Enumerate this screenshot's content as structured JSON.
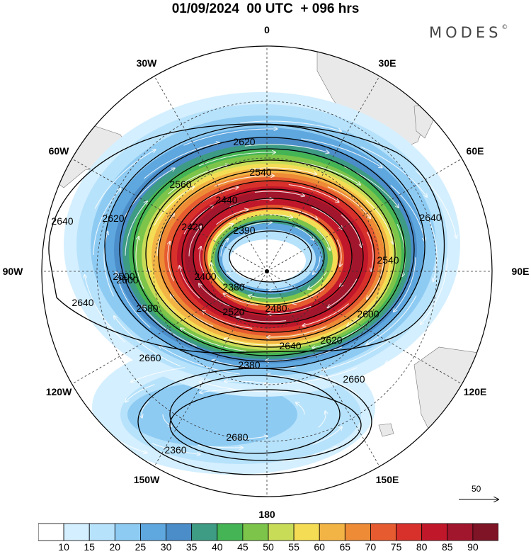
{
  "header": {
    "title": "01/09/2024  00 UTC  + 096 hrs",
    "brand": "MODES",
    "brand_mark": "©"
  },
  "map": {
    "projection": "polar stereographic (south pole)",
    "longitude_labels": [
      {
        "id": "0",
        "text": "0"
      },
      {
        "id": "30e",
        "text": "30E"
      },
      {
        "id": "60e",
        "text": "60E"
      },
      {
        "id": "90e",
        "text": "90E"
      },
      {
        "id": "120e",
        "text": "120E"
      },
      {
        "id": "150e",
        "text": "150E"
      },
      {
        "id": "180",
        "text": "180"
      },
      {
        "id": "150w",
        "text": "150W"
      },
      {
        "id": "120w",
        "text": "120W"
      },
      {
        "id": "90w",
        "text": "90W"
      },
      {
        "id": "60w",
        "text": "60W"
      },
      {
        "id": "30w",
        "text": "30W"
      }
    ],
    "contour_labels": [
      "2620",
      "2640",
      "2640",
      "2640",
      "2620",
      "2600",
      "2580",
      "2560",
      "2540",
      "2520",
      "2500",
      "2480",
      "2440",
      "2420",
      "2400",
      "2390",
      "2380",
      "2540",
      "2600",
      "2620",
      "2640",
      "2660",
      "2660",
      "2680",
      "2380",
      "2360"
    ],
    "reference_vector_label": "50"
  },
  "colorbar": {
    "levels": [
      "10",
      "15",
      "20",
      "25",
      "30",
      "35",
      "40",
      "45",
      "50",
      "55",
      "60",
      "65",
      "70",
      "75",
      "80",
      "85",
      "90"
    ],
    "colors": [
      "#ffffff",
      "#d4efff",
      "#b7e2fb",
      "#8ecbf3",
      "#5fa7df",
      "#4b8dc8",
      "#3e9b84",
      "#45b454",
      "#7dc44a",
      "#c8dc58",
      "#f4dd55",
      "#f3b446",
      "#ed8b36",
      "#e65b2f",
      "#d8302b",
      "#c0182a",
      "#a1162c",
      "#7e1426"
    ]
  },
  "legend_colors": {
    "land": "#e8e8e8",
    "contour": "#000000",
    "streamline": "#ffffff"
  }
}
